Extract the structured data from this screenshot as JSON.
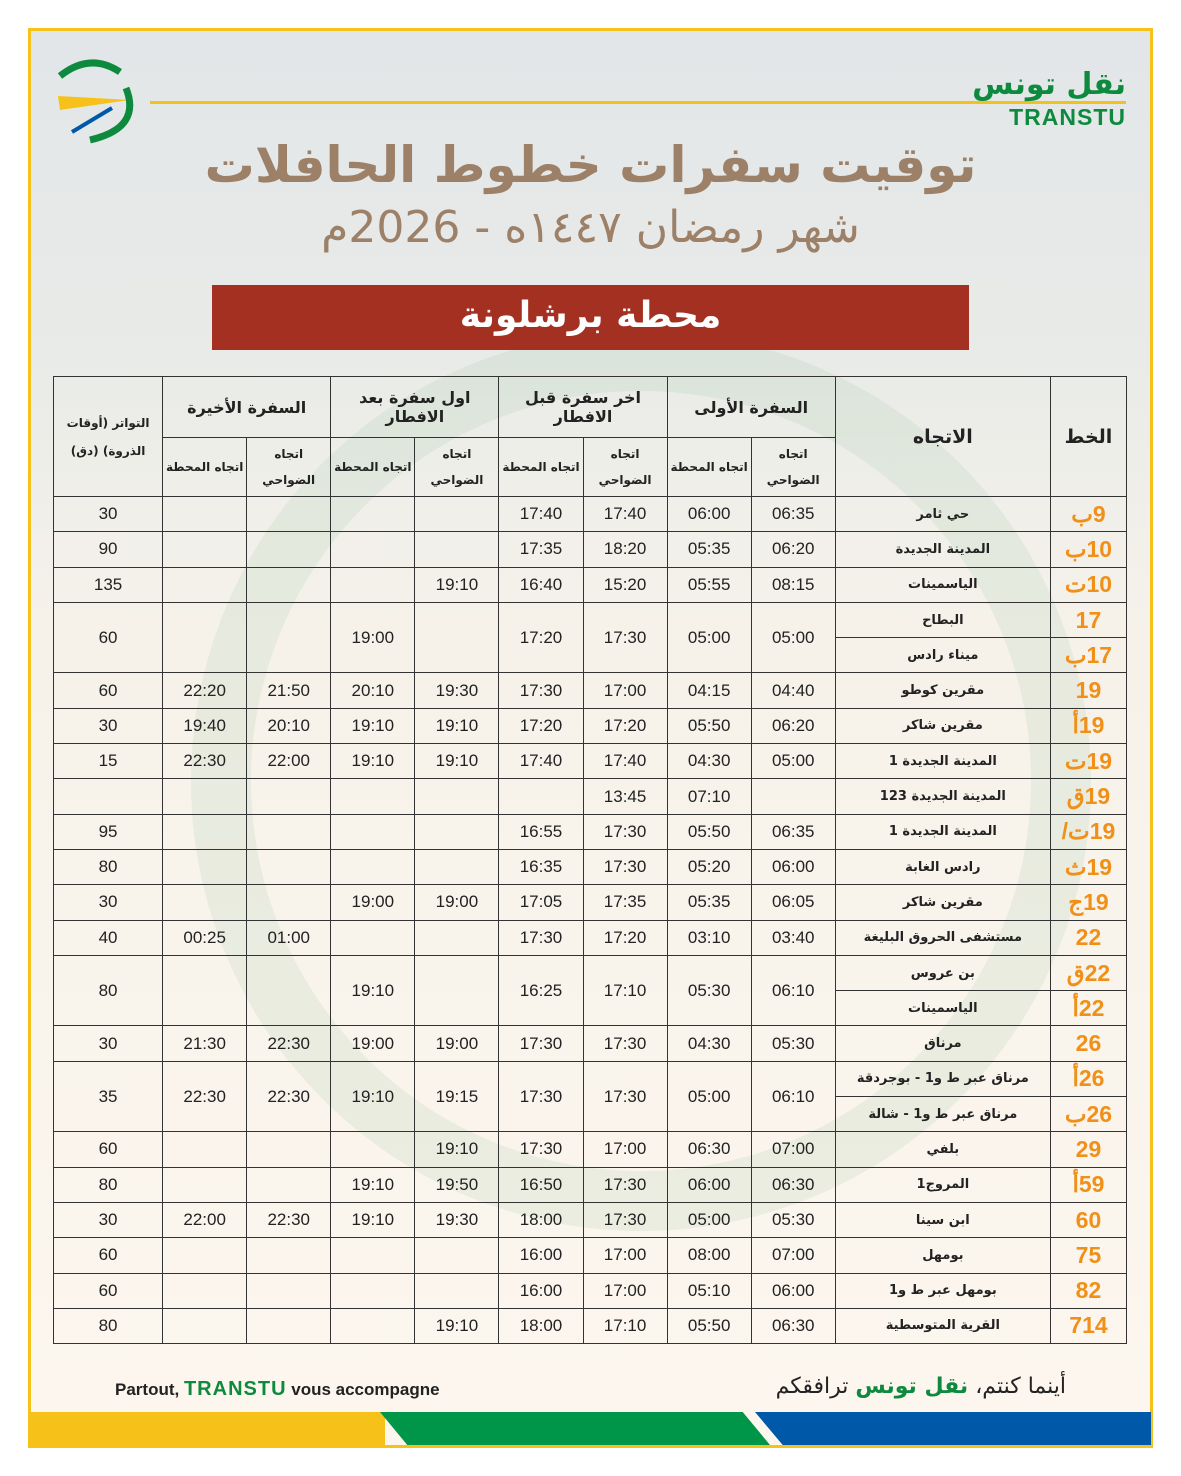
{
  "brand": {
    "arabic": "نقل تونس",
    "latin": "TRANSTU"
  },
  "title": "توقيت سفرات خطوط الحافلات",
  "subtitle": "شهر رمضان ١٤٤٧ه - 2026م",
  "station": "محطة برشلونة",
  "colors": {
    "accent_orange": "#f19018",
    "banner_red": "#a33020",
    "brand_green": "#0d8a3e",
    "title_brown": "#9c8068",
    "yellow": "#f6c21a",
    "blue": "#0058a8"
  },
  "table": {
    "headers": {
      "line": "الخط",
      "direction": "الاتجاه",
      "first_trip": "السفرة الأولى",
      "last_before_iftar": "اخر سفرة قبل الافطار",
      "first_after_iftar": "اول سفرة بعد الافطار",
      "last_trip": "السفرة الأخيرة",
      "frequency": "التواتر (أوقات الذروة) (دق)",
      "to_suburbs": "اتجاه الضواحي",
      "to_station": "اتجاه المحطة"
    },
    "groups": [
      {
        "routes": [
          {
            "line": "9ب",
            "direction": "حي ثامر"
          }
        ],
        "times": [
          "06:35",
          "06:00",
          "17:40",
          "17:40",
          "",
          "",
          "",
          "",
          "30"
        ]
      },
      {
        "routes": [
          {
            "line": "10ب",
            "direction": "المدينة الجديدة"
          }
        ],
        "times": [
          "06:20",
          "05:35",
          "18:20",
          "17:35",
          "",
          "",
          "",
          "",
          "90"
        ]
      },
      {
        "routes": [
          {
            "line": "10ت",
            "direction": "الياسمينات"
          }
        ],
        "times": [
          "08:15",
          "05:55",
          "15:20",
          "16:40",
          "19:10",
          "",
          "",
          "",
          "135"
        ]
      },
      {
        "routes": [
          {
            "line": "17",
            "direction": "البطاح"
          },
          {
            "line": "17ب",
            "direction": "ميناء رادس"
          }
        ],
        "times": [
          "05:00",
          "05:00",
          "17:30",
          "17:20",
          "",
          "19:00",
          "",
          "",
          "60"
        ]
      },
      {
        "routes": [
          {
            "line": "19",
            "direction": "مقرين كوطو"
          }
        ],
        "times": [
          "04:40",
          "04:15",
          "17:00",
          "17:30",
          "19:30",
          "20:10",
          "21:50",
          "22:20",
          "60"
        ]
      },
      {
        "routes": [
          {
            "line": "19أ",
            "direction": "مقرين شاكر"
          }
        ],
        "times": [
          "06:20",
          "05:50",
          "17:20",
          "17:20",
          "19:10",
          "19:10",
          "20:10",
          "19:40",
          "30"
        ]
      },
      {
        "routes": [
          {
            "line": "19ت",
            "direction": "المدينة الجديدة 1"
          }
        ],
        "times": [
          "05:00",
          "04:30",
          "17:40",
          "17:40",
          "19:10",
          "19:10",
          "22:00",
          "22:30",
          "15"
        ]
      },
      {
        "routes": [
          {
            "line": "19ق",
            "direction": "المدينة الجديدة 123"
          }
        ],
        "times": [
          "",
          "07:10",
          "13:45",
          "",
          "",
          "",
          "",
          "",
          ""
        ]
      },
      {
        "routes": [
          {
            "line": "19ت/",
            "direction": "المدينة الجديدة 1"
          }
        ],
        "times": [
          "06:35",
          "05:50",
          "17:30",
          "16:55",
          "",
          "",
          "",
          "",
          "95"
        ]
      },
      {
        "routes": [
          {
            "line": "19ث",
            "direction": "رادس الغابة"
          }
        ],
        "times": [
          "06:00",
          "05:20",
          "17:30",
          "16:35",
          "",
          "",
          "",
          "",
          "80"
        ]
      },
      {
        "routes": [
          {
            "line": "19ج",
            "direction": "مقرين شاكر"
          }
        ],
        "times": [
          "06:05",
          "05:35",
          "17:35",
          "17:05",
          "19:00",
          "19:00",
          "",
          "",
          "30"
        ]
      },
      {
        "routes": [
          {
            "line": "22",
            "direction": "مستشفى الحروق البليغة"
          }
        ],
        "times": [
          "03:40",
          "03:10",
          "17:20",
          "17:30",
          "",
          "",
          "01:00",
          "00:25",
          "40"
        ]
      },
      {
        "routes": [
          {
            "line": "22ق",
            "direction": "بن عروس"
          },
          {
            "line": "22أ",
            "direction": "الياسمينات"
          }
        ],
        "times": [
          "06:10",
          "05:30",
          "17:10",
          "16:25",
          "",
          "19:10",
          "",
          "",
          "80"
        ]
      },
      {
        "routes": [
          {
            "line": "26",
            "direction": "مرناق"
          }
        ],
        "times": [
          "05:30",
          "04:30",
          "17:30",
          "17:30",
          "19:00",
          "19:00",
          "22:30",
          "21:30",
          "30"
        ]
      },
      {
        "routes": [
          {
            "line": "26أ",
            "direction": "مرناق عبر ط و1 - بوجردقة"
          },
          {
            "line": "26ب",
            "direction": "مرناق عبر ط و1 - شالة"
          }
        ],
        "times": [
          "06:10",
          "05:00",
          "17:30",
          "17:30",
          "19:15",
          "19:10",
          "22:30",
          "22:30",
          "35"
        ]
      },
      {
        "routes": [
          {
            "line": "29",
            "direction": "بلفي"
          }
        ],
        "times": [
          "07:00",
          "06:30",
          "17:00",
          "17:30",
          "19:10",
          "",
          "",
          "",
          "60"
        ]
      },
      {
        "routes": [
          {
            "line": "59أ",
            "direction": "المروج1"
          }
        ],
        "times": [
          "06:30",
          "06:00",
          "17:30",
          "16:50",
          "19:50",
          "19:10",
          "",
          "",
          "80"
        ]
      },
      {
        "routes": [
          {
            "line": "60",
            "direction": "ابن سينا"
          }
        ],
        "times": [
          "05:30",
          "05:00",
          "17:30",
          "18:00",
          "19:30",
          "19:10",
          "22:30",
          "22:00",
          "30"
        ]
      },
      {
        "routes": [
          {
            "line": "75",
            "direction": "بومهل"
          }
        ],
        "times": [
          "07:00",
          "08:00",
          "17:00",
          "16:00",
          "",
          "",
          "",
          "",
          "60"
        ]
      },
      {
        "routes": [
          {
            "line": "82",
            "direction": "بومهل عبر ط و1"
          }
        ],
        "times": [
          "06:00",
          "05:10",
          "17:00",
          "16:00",
          "",
          "",
          "",
          "",
          "60"
        ]
      },
      {
        "routes": [
          {
            "line": "714",
            "direction": "القرية المتوسطية"
          }
        ],
        "times": [
          "06:30",
          "05:50",
          "17:10",
          "18:00",
          "19:10",
          "",
          "",
          "",
          "80"
        ]
      }
    ]
  },
  "footer": {
    "fr_before": "Partout,",
    "fr_brand": "TRANSTU",
    "fr_after": "vous accompagne",
    "ar_before": "أينما كنتم،",
    "ar_brand": "نقل تونس",
    "ar_after": "ترافقكم"
  }
}
